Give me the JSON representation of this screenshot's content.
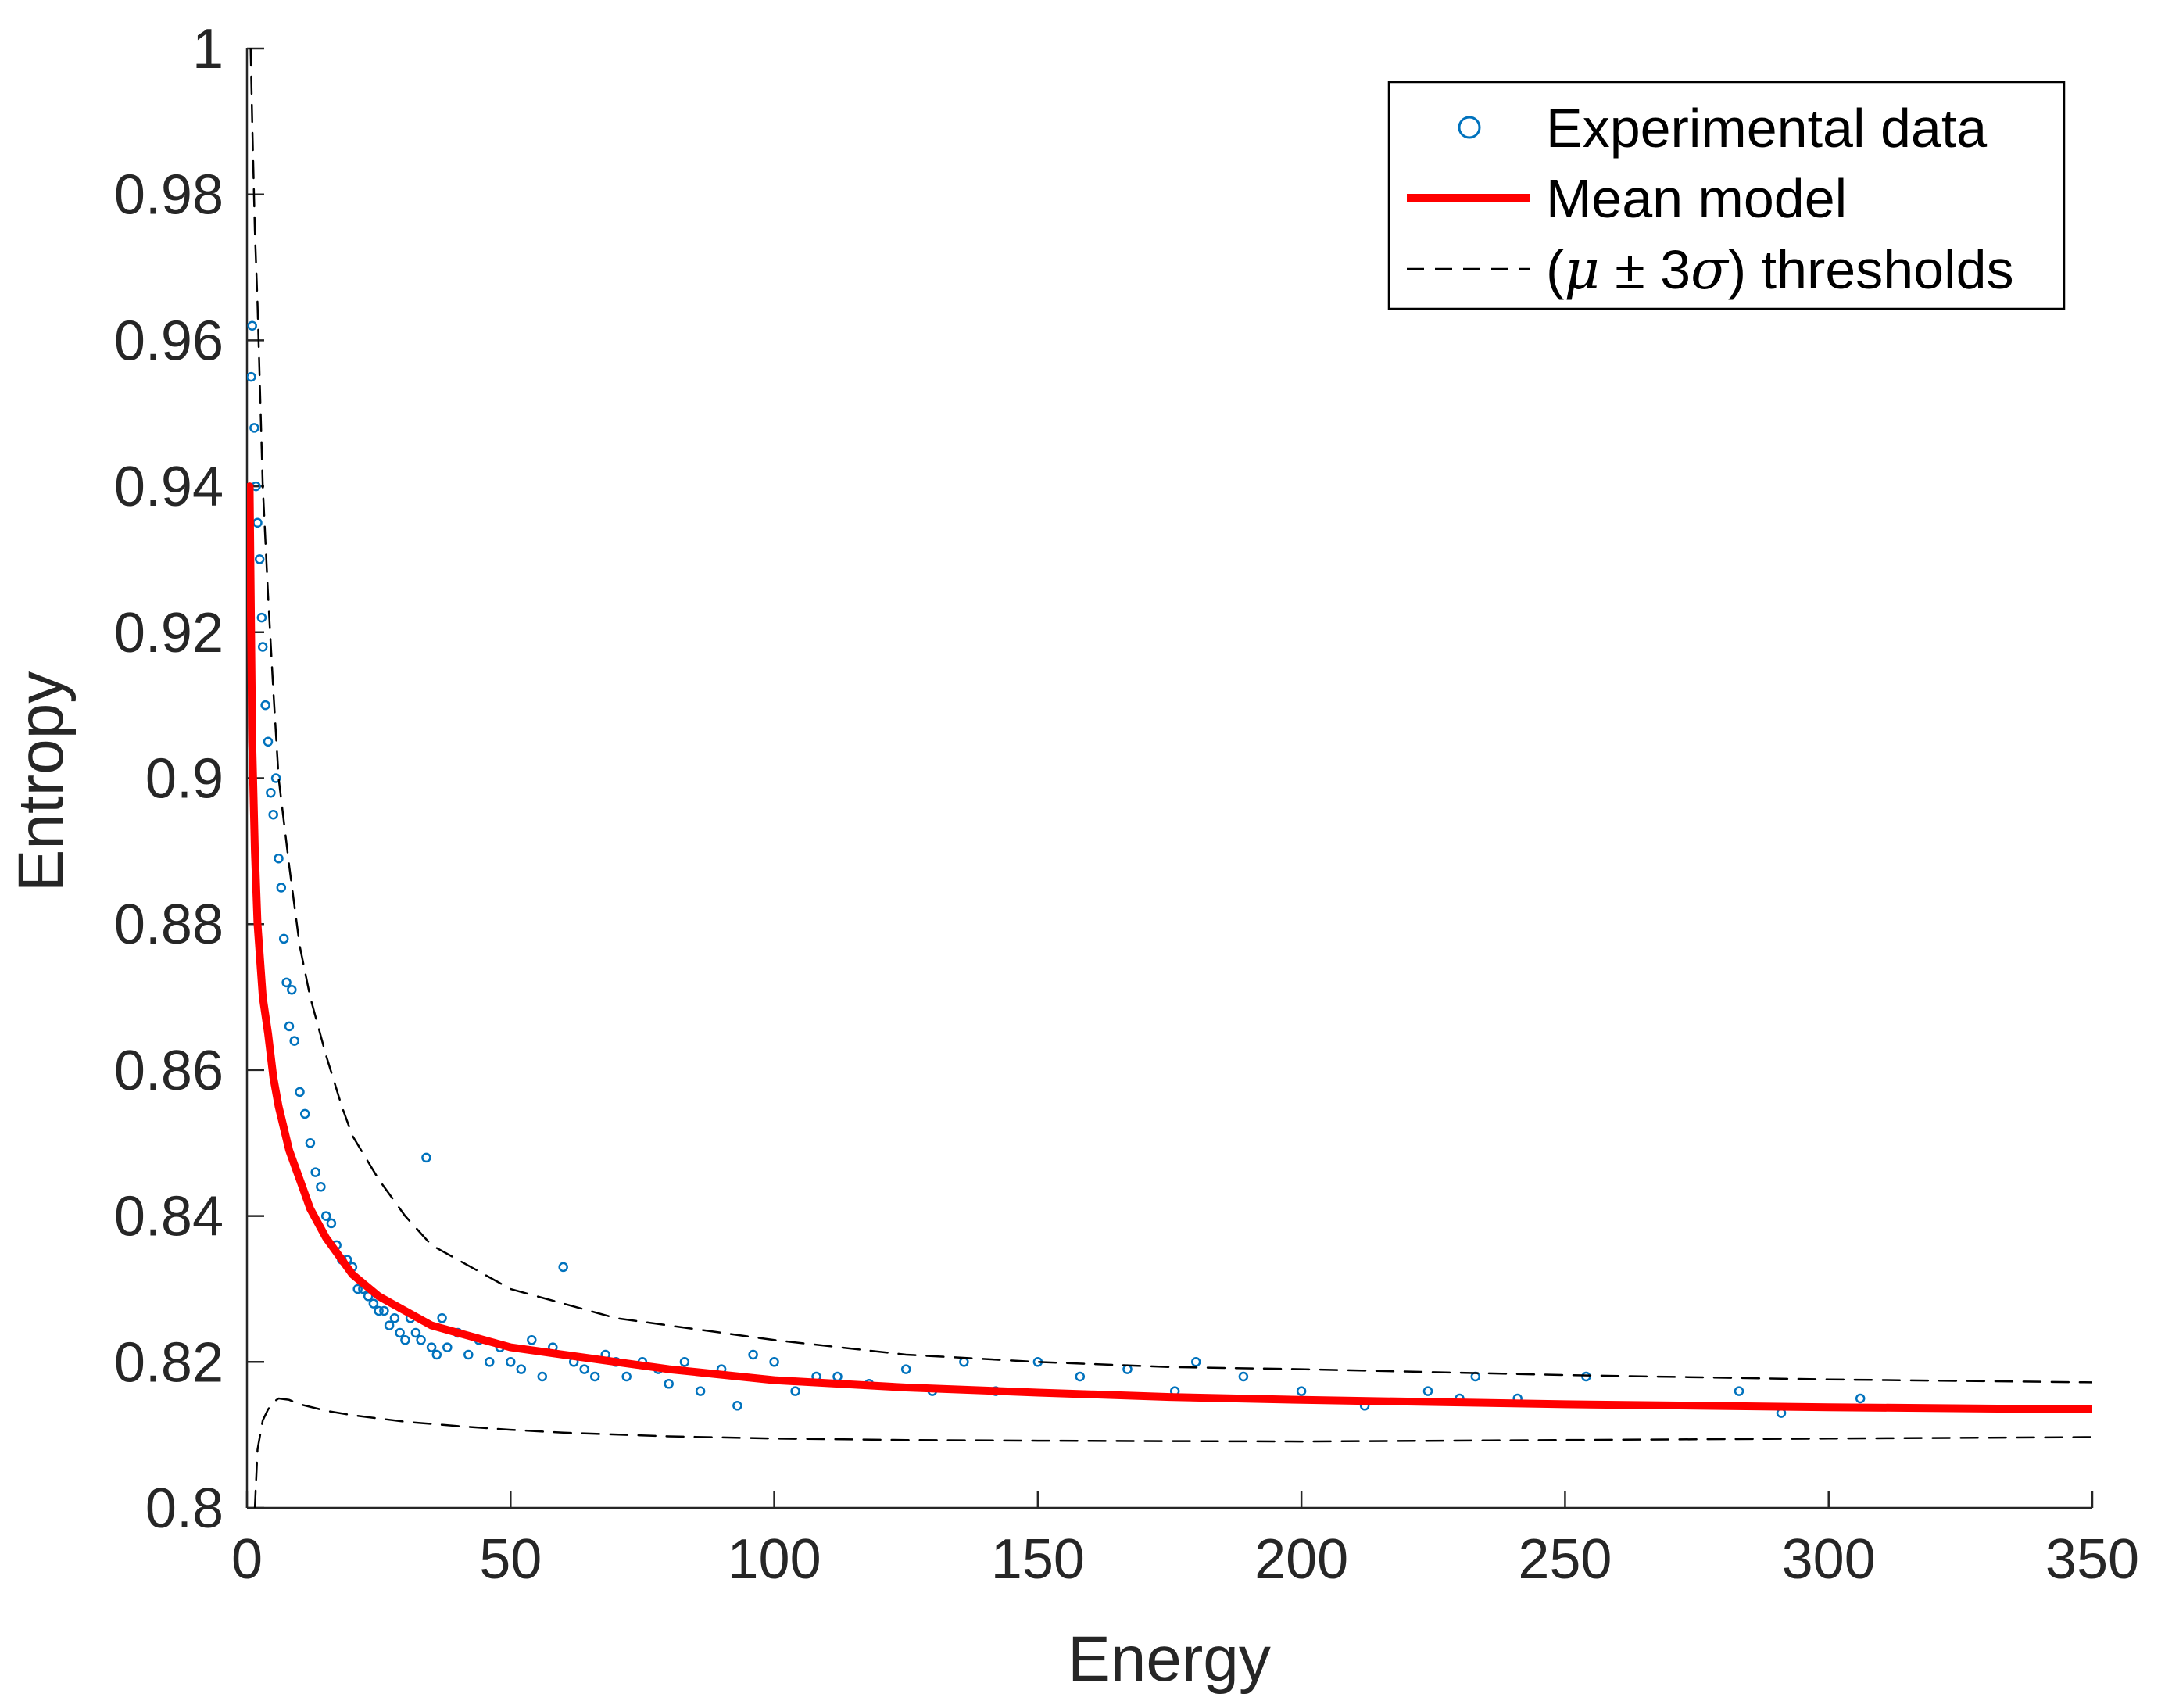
{
  "chart_data": {
    "type": "scatter",
    "title": "",
    "xlabel": "Energy",
    "ylabel": "Entropy",
    "xlim": [
      0,
      350
    ],
    "ylim": [
      0.8,
      1
    ],
    "grid": false,
    "legend_location": "top-right",
    "xticks": [
      0,
      50,
      100,
      150,
      200,
      250,
      300,
      350
    ],
    "xtick_labels": [
      "0",
      "50",
      "100",
      "150",
      "200",
      "250",
      "300",
      "350"
    ],
    "yticks": [
      0.8,
      0.82,
      0.84,
      0.86,
      0.88,
      0.9,
      0.92,
      0.94,
      0.96,
      0.98,
      1
    ],
    "ytick_labels": [
      "0.8",
      "0.82",
      "0.84",
      "0.86",
      "0.88",
      "0.9",
      "0.92",
      "0.94",
      "0.96",
      "0.98",
      "1"
    ],
    "series": [
      {
        "name": "Experimental data",
        "kind": "scatter",
        "marker": "circle",
        "color": "#0072BD",
        "x": [
          0.8,
          1.0,
          1.4,
          1.7,
          2.0,
          2.4,
          2.8,
          3.0,
          3.5,
          4.0,
          4.5,
          5.0,
          5.5,
          6.0,
          6.5,
          7.0,
          7.5,
          8.0,
          8.5,
          9.0,
          10.0,
          11.0,
          12.0,
          13.0,
          14.0,
          15.0,
          16.0,
          17.0,
          18.0,
          19.0,
          20.0,
          21.0,
          22.0,
          23.0,
          24.0,
          25.0,
          26.0,
          27.0,
          28.0,
          29.0,
          30.0,
          31.0,
          32.0,
          33.0,
          34.0,
          35.0,
          36.0,
          37.0,
          38.0,
          40.0,
          42.0,
          44.0,
          46.0,
          48.0,
          50.0,
          52.0,
          54.0,
          56.0,
          58.0,
          60.0,
          62.0,
          64.0,
          66.0,
          68.0,
          70.0,
          72.0,
          75.0,
          78.0,
          80.0,
          83.0,
          86.0,
          90.0,
          93.0,
          96.0,
          100.0,
          104.0,
          108.0,
          112.0,
          118.0,
          125.0,
          130.0,
          136.0,
          142.0,
          150.0,
          158.0,
          167.0,
          176.0,
          180.0,
          189.0,
          200.0,
          212.0,
          224.0,
          230.0,
          233.0,
          241.0,
          254.0,
          283.0,
          291.0,
          306.0
        ],
        "y": [
          0.955,
          0.962,
          0.948,
          0.94,
          0.935,
          0.93,
          0.922,
          0.918,
          0.91,
          0.905,
          0.898,
          0.895,
          0.9,
          0.889,
          0.885,
          0.878,
          0.872,
          0.866,
          0.871,
          0.864,
          0.857,
          0.854,
          0.85,
          0.846,
          0.844,
          0.84,
          0.839,
          0.836,
          0.834,
          0.834,
          0.833,
          0.83,
          0.83,
          0.829,
          0.828,
          0.827,
          0.827,
          0.825,
          0.826,
          0.824,
          0.823,
          0.826,
          0.824,
          0.823,
          0.848,
          0.822,
          0.821,
          0.826,
          0.822,
          0.824,
          0.821,
          0.823,
          0.82,
          0.822,
          0.82,
          0.819,
          0.823,
          0.818,
          0.822,
          0.833,
          0.82,
          0.819,
          0.818,
          0.821,
          0.82,
          0.818,
          0.82,
          0.819,
          0.817,
          0.82,
          0.816,
          0.819,
          0.814,
          0.821,
          0.82,
          0.816,
          0.818,
          0.818,
          0.817,
          0.819,
          0.816,
          0.82,
          0.816,
          0.82,
          0.818,
          0.819,
          0.816,
          0.82,
          0.818,
          0.816,
          0.814,
          0.816,
          0.815,
          0.818,
          0.815,
          0.818,
          0.816,
          0.813,
          0.815
        ]
      },
      {
        "name": "Mean model",
        "kind": "line",
        "color": "#FF0000",
        "line_style": "solid",
        "x": [
          0.5,
          1,
          1.5,
          2,
          3,
          4,
          5,
          6,
          8,
          10,
          12,
          15,
          18,
          20,
          25,
          30,
          35,
          40,
          50,
          60,
          70,
          80,
          100,
          125,
          150,
          175,
          200,
          250,
          300,
          350
        ],
        "y": [
          0.94,
          0.905,
          0.89,
          0.88,
          0.87,
          0.865,
          0.859,
          0.855,
          0.849,
          0.845,
          0.841,
          0.837,
          0.834,
          0.832,
          0.829,
          0.827,
          0.825,
          0.824,
          0.822,
          0.821,
          0.82,
          0.819,
          0.8175,
          0.8165,
          0.8158,
          0.8152,
          0.8148,
          0.8142,
          0.8138,
          0.8135
        ]
      },
      {
        "name": "(μ ± 3σ) thresholds",
        "kind": "line",
        "color": "#000000",
        "line_style": "dashed",
        "part": "upper",
        "x": [
          0.7,
          1,
          1.5,
          2,
          3,
          4,
          5,
          6,
          8,
          10,
          12,
          15,
          18,
          20,
          25,
          30,
          35,
          40,
          50,
          60,
          70,
          80,
          100,
          125,
          150,
          175,
          200,
          250,
          300,
          350
        ],
        "y": [
          1.0,
          0.99,
          0.975,
          0.965,
          0.94,
          0.925,
          0.912,
          0.9,
          0.888,
          0.877,
          0.87,
          0.862,
          0.855,
          0.851,
          0.845,
          0.84,
          0.836,
          0.834,
          0.83,
          0.828,
          0.826,
          0.825,
          0.823,
          0.821,
          0.82,
          0.8193,
          0.819,
          0.8182,
          0.8176,
          0.8172
        ]
      },
      {
        "name": "(μ ± 3σ) thresholds",
        "kind": "line",
        "color": "#000000",
        "line_style": "dashed",
        "part": "lower",
        "x": [
          1.5,
          2,
          3,
          4,
          5,
          6,
          8,
          10,
          15,
          20,
          30,
          40,
          50,
          60,
          80,
          100,
          125,
          150,
          200,
          250,
          300,
          350
        ],
        "y": [
          0.8,
          0.808,
          0.812,
          0.8135,
          0.8145,
          0.815,
          0.8148,
          0.8142,
          0.8133,
          0.8127,
          0.8118,
          0.8112,
          0.8107,
          0.8103,
          0.8098,
          0.8095,
          0.8093,
          0.8092,
          0.8091,
          0.8093,
          0.8095,
          0.8097
        ]
      }
    ]
  },
  "legend": {
    "entries": [
      {
        "label": "Experimental data",
        "symbol": "circle"
      },
      {
        "label": "Mean model",
        "symbol": "line"
      },
      {
        "label_prefix": "(",
        "label_mu": "μ",
        "label_pm": " ± 3",
        "label_sigma": "σ",
        "label_suffix": ") thresholds",
        "symbol": "dashed-line"
      }
    ]
  }
}
